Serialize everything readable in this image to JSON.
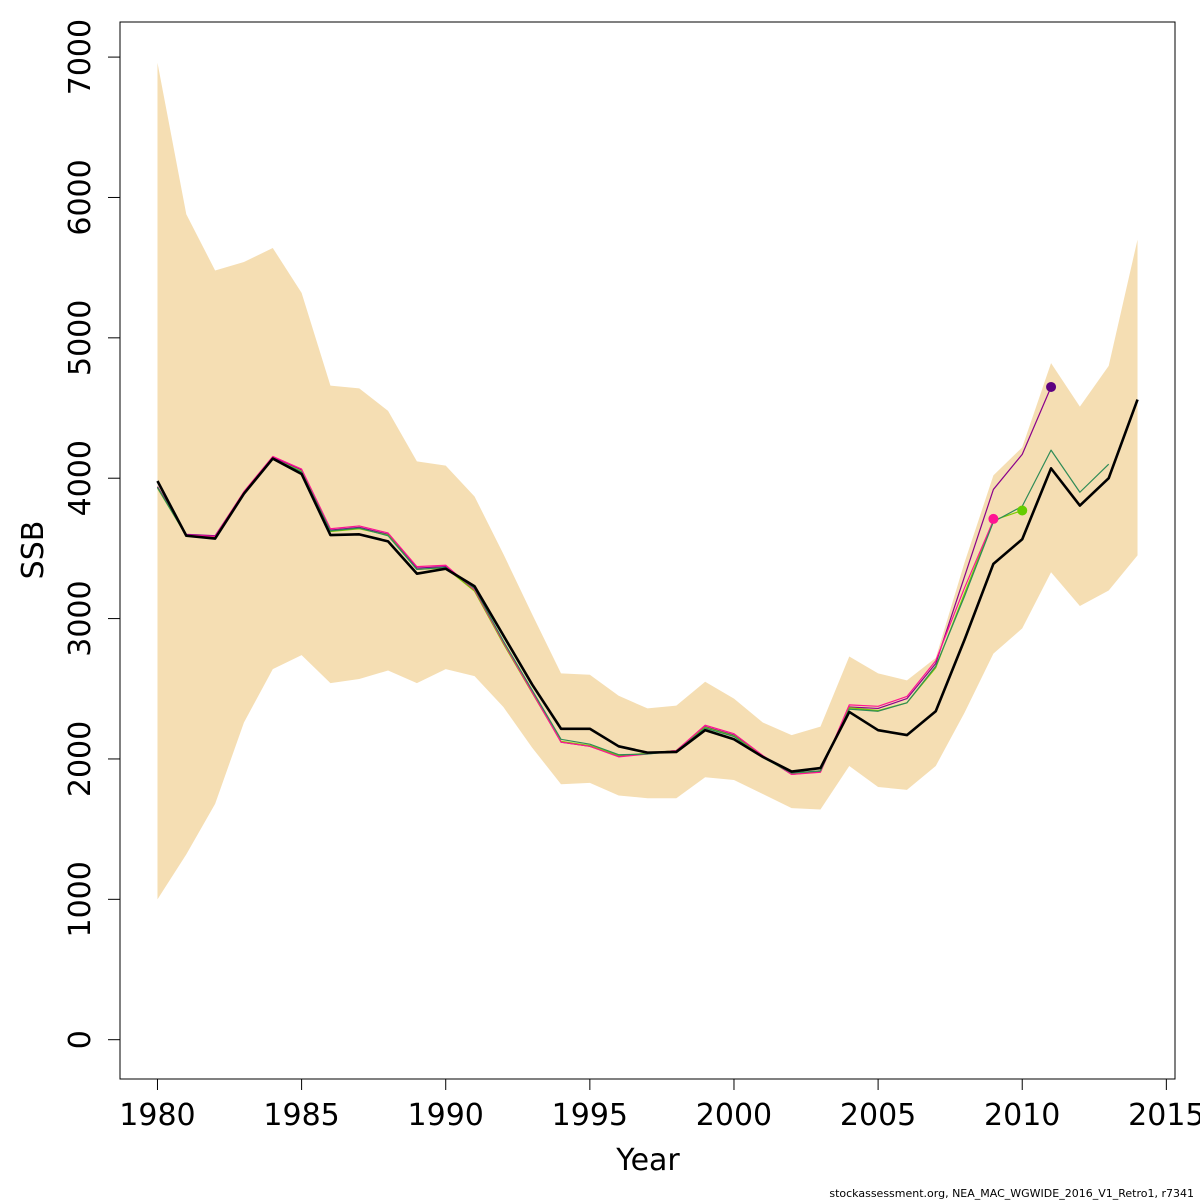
{
  "chart_data": {
    "type": "line",
    "xlabel": "Year",
    "ylabel": "SSB",
    "xlim": [
      1978.7,
      2015.3
    ],
    "ylim": [
      -280,
      7250
    ],
    "x_ticks": [
      1980,
      1985,
      1990,
      1995,
      2000,
      2005,
      2010,
      2015
    ],
    "y_ticks": [
      0,
      1000,
      2000,
      3000,
      4000,
      5000,
      6000,
      7000
    ],
    "x_tick_labels": [
      "1980",
      "1985",
      "1990",
      "1995",
      "2000",
      "2005",
      "2010",
      "2015"
    ],
    "y_tick_labels": [
      "0",
      "1000",
      "2000",
      "3000",
      "4000",
      "5000",
      "6000",
      "7000"
    ],
    "colors": {
      "band": "#F5DEB3",
      "main": "#000000",
      "retro_2013": "#2E8B57",
      "retro_2012": "#FF1493",
      "retro_2011": "#7CCD00",
      "retro_2010": "#8B008B",
      "point_2009": "#FF1493",
      "point_2010": "#66CD00",
      "point_2011": "#5D0080"
    },
    "confidence_band": {
      "x": [
        1980,
        1981,
        1982,
        1983,
        1984,
        1985,
        1986,
        1987,
        1988,
        1989,
        1990,
        1991,
        1992,
        1993,
        1994,
        1995,
        1996,
        1997,
        1998,
        1999,
        2000,
        2001,
        2002,
        2003,
        2004,
        2005,
        2006,
        2007,
        2008,
        2009,
        2010,
        2011,
        2012,
        2013,
        2014
      ],
      "upper": [
        6960,
        5880,
        5480,
        5540,
        5640,
        5320,
        4660,
        4640,
        4480,
        4120,
        4090,
        3870,
        3460,
        3030,
        2610,
        2600,
        2450,
        2360,
        2380,
        2550,
        2430,
        2260,
        2170,
        2230,
        2730,
        2610,
        2560,
        2720,
        3400,
        4020,
        4220,
        4820,
        4510,
        4800,
        5700
      ],
      "lower": [
        1000,
        1320,
        1680,
        2260,
        2640,
        2740,
        2540,
        2570,
        2630,
        2540,
        2640,
        2590,
        2370,
        2080,
        1820,
        1830,
        1740,
        1720,
        1720,
        1870,
        1850,
        1750,
        1650,
        1640,
        1950,
        1800,
        1780,
        1950,
        2330,
        2750,
        2930,
        3330,
        3090,
        3200,
        3450
      ]
    },
    "series": [
      {
        "key": "retro_2010",
        "x": [
          1980,
          1981,
          1982,
          1983,
          1984,
          1985,
          1986,
          1987,
          1988,
          1989,
          1990,
          1991,
          1992,
          1993,
          1994,
          1995,
          1996,
          1997,
          1998,
          1999,
          2000,
          2001,
          2002,
          2003,
          2004,
          2005,
          2006,
          2007,
          2008,
          2009,
          2010,
          2011
        ],
        "values": [
          3940,
          3600,
          3590,
          3900,
          4150,
          4060,
          3630,
          3650,
          3600,
          3360,
          3370,
          3200,
          2830,
          2480,
          2120,
          2090,
          2020,
          2040,
          2060,
          2230,
          2170,
          2020,
          1890,
          1910,
          2370,
          2360,
          2430,
          2680,
          3300,
          3920,
          4170,
          4650
        ]
      },
      {
        "key": "retro_2011",
        "x": [
          1980,
          1981,
          1982,
          1983,
          1984,
          1985,
          1986,
          1987,
          1988,
          1989,
          1990,
          1991,
          1992,
          1993,
          1994,
          1995,
          1996,
          1997,
          1998,
          1999,
          2000,
          2001,
          2002,
          2003,
          2004,
          2005,
          2006,
          2007,
          2008,
          2009,
          2010
        ],
        "values": [
          3930,
          3590,
          3580,
          3895,
          4140,
          4050,
          3620,
          3640,
          3595,
          3350,
          3360,
          3195,
          2820,
          2470,
          2125,
          2095,
          2025,
          2040,
          2060,
          2225,
          2165,
          2015,
          1895,
          1915,
          2365,
          2345,
          2400,
          2650,
          3180,
          3700,
          3770
        ]
      },
      {
        "key": "retro_2012",
        "x": [
          1980,
          1981,
          1982,
          1983,
          1984,
          1985,
          1986,
          1987,
          1988,
          1989,
          1990,
          1991,
          1992,
          1993,
          1994,
          1995,
          1996,
          1997,
          1998,
          1999,
          2000,
          2001,
          2002,
          2003,
          2004,
          2005,
          2006,
          2007,
          2008,
          2009
        ],
        "values": [
          3935,
          3595,
          3585,
          3905,
          4155,
          4065,
          3640,
          3660,
          3610,
          3370,
          3380,
          3205,
          2830,
          2475,
          2120,
          2090,
          2015,
          2035,
          2060,
          2240,
          2180,
          2025,
          1890,
          1905,
          2385,
          2375,
          2445,
          2700,
          3220,
          3700
        ]
      },
      {
        "key": "retro_2013",
        "x": [
          1980,
          1981,
          1982,
          1983,
          1984,
          1985,
          1986,
          1987,
          1988,
          1989,
          1990,
          1991,
          1992,
          1993,
          1994,
          1995,
          1996,
          1997,
          1998,
          1999,
          2000,
          2001,
          2002,
          2003,
          2004,
          2005,
          2006,
          2007,
          2008,
          2009,
          2010,
          2011,
          2012,
          2013
        ],
        "values": [
          3935,
          3590,
          3575,
          3890,
          4140,
          4045,
          3625,
          3645,
          3590,
          3350,
          3365,
          3215,
          2840,
          2490,
          2140,
          2105,
          2030,
          2035,
          2055,
          2220,
          2160,
          2010,
          1900,
          1915,
          2355,
          2340,
          2400,
          2660,
          3160,
          3690,
          3800,
          4200,
          3900,
          4100
        ]
      },
      {
        "key": "main",
        "x": [
          1980,
          1981,
          1982,
          1983,
          1984,
          1985,
          1986,
          1987,
          1988,
          1989,
          1990,
          1991,
          1992,
          1993,
          1994,
          1995,
          1996,
          1997,
          1998,
          1999,
          2000,
          2001,
          2002,
          2003,
          2004,
          2005,
          2006,
          2007,
          2008,
          2009,
          2010,
          2011,
          2012,
          2013,
          2014
        ],
        "values": [
          3980,
          3590,
          3570,
          3890,
          4140,
          4030,
          3595,
          3600,
          3550,
          3320,
          3355,
          3230,
          2880,
          2530,
          2215,
          2215,
          2090,
          2045,
          2050,
          2205,
          2140,
          2015,
          1910,
          1935,
          2335,
          2205,
          2170,
          2340,
          2850,
          3390,
          3565,
          4070,
          3805,
          4000,
          4560
        ]
      }
    ],
    "end_points": [
      {
        "key": "point_2009",
        "x": 2009,
        "y": 3710
      },
      {
        "key": "point_2010",
        "x": 2010,
        "y": 3770
      },
      {
        "key": "point_2011",
        "x": 2011,
        "y": 4650
      }
    ]
  },
  "footer": "stockassessment.org, NEA_MAC_WGWIDE_2016_V1_Retro1, r7341"
}
